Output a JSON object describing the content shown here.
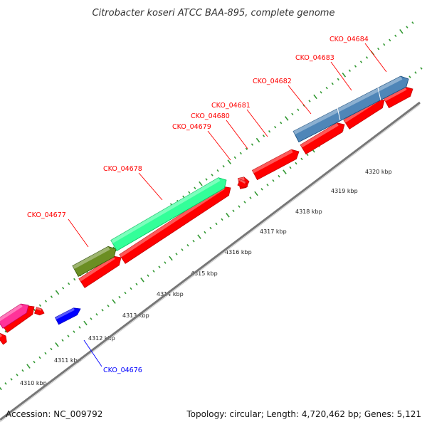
{
  "title": "Citrobacter koseri ATCC BAA-895, complete genome",
  "footer": {
    "accession": "Accession: NC_009792",
    "topology": "Topology: circular; Length: 4,720,462 bp; Genes: 5,121"
  },
  "colors": {
    "cds": "#ff0000",
    "backbone": "#777777",
    "tick": "#339933",
    "label_red": "#ff0000",
    "label_blue": "#0000ff",
    "teal": "#33ff99",
    "olive": "#6b8e23",
    "steelblue": "#4f86b8",
    "magenta": "#ff3399",
    "blue": "#0000ff"
  },
  "axis_labels": [
    "4310 kbp",
    "4311 kbp",
    "4312 kbp",
    "4313 kbp",
    "4314 kbp",
    "4315 kbp",
    "4316 kbp",
    "4317 kbp",
    "4318 kbp",
    "4319 kbp",
    "4320 kbp"
  ],
  "gene_labels": [
    {
      "text": "CKO_04676",
      "color": "blue"
    },
    {
      "text": "CKO_04677",
      "color": "red"
    },
    {
      "text": "CKO_04678",
      "color": "red"
    },
    {
      "text": "CKO_04679",
      "color": "red"
    },
    {
      "text": "CKO_04680",
      "color": "red"
    },
    {
      "text": "CKO_04681",
      "color": "red"
    },
    {
      "text": "CKO_04682",
      "color": "red"
    },
    {
      "text": "CKO_04683",
      "color": "red"
    },
    {
      "text": "CKO_04684",
      "color": "red"
    }
  ]
}
